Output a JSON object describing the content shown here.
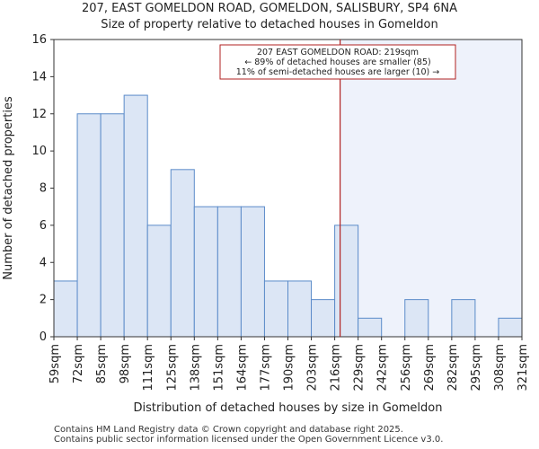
{
  "footer_lines": [
    "Contains HM Land Registry data © Crown copyright and database right 2025.",
    "Contains public sector information licensed under the Open Government Licence v3.0."
  ],
  "chart_data": {
    "type": "bar",
    "title": "207, EAST GOMELDON ROAD, GOMELDON, SALISBURY, SP4 6NA",
    "subtitle": "Size of property relative to detached houses in Gomeldon",
    "xlabel": "Distribution of detached houses by size in Gomeldon",
    "ylabel": "Number of detached properties",
    "ylim": [
      0,
      16
    ],
    "yticks": [
      0,
      2,
      4,
      6,
      8,
      10,
      12,
      14,
      16
    ],
    "bin_edges": [
      59,
      72,
      85,
      98,
      111,
      125,
      138,
      151,
      164,
      177,
      190,
      203,
      216,
      229,
      242,
      256,
      269,
      282,
      295,
      308,
      321
    ],
    "tick_labels": [
      "59sqm",
      "72sqm",
      "85sqm",
      "98sqm",
      "111sqm",
      "125sqm",
      "138sqm",
      "151sqm",
      "164sqm",
      "177sqm",
      "190sqm",
      "203sqm",
      "216sqm",
      "229sqm",
      "242sqm",
      "256sqm",
      "269sqm",
      "282sqm",
      "295sqm",
      "308sqm",
      "321sqm"
    ],
    "values": [
      3,
      12,
      12,
      13,
      6,
      9,
      7,
      7,
      7,
      3,
      3,
      2,
      6,
      1,
      0,
      2,
      0,
      2,
      0,
      1
    ],
    "grid": false,
    "bar_fill": "#dce6f5",
    "bar_stroke": "#5b8bc9",
    "highlight_fill": "#eef2fb",
    "marker": {
      "value": 219,
      "color": "#b22222",
      "annotation": [
        "207 EAST GOMELDON ROAD: 219sqm",
        "← 89% of detached houses are smaller (85)",
        "11% of semi-detached houses are larger (10) →"
      ]
    }
  }
}
